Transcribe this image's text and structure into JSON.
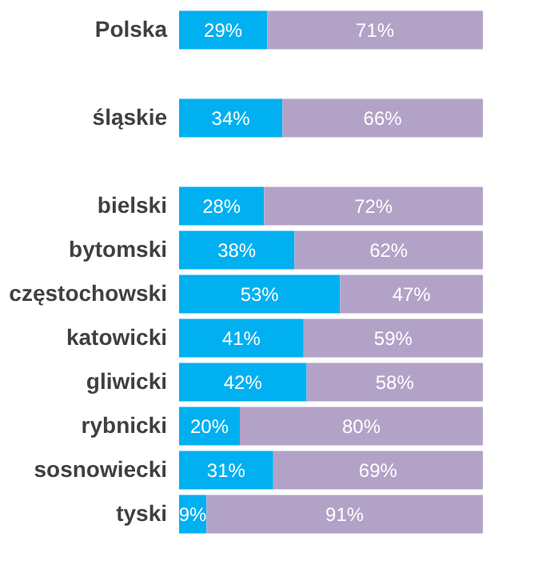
{
  "chart_data": {
    "type": "bar",
    "orientation": "horizontal",
    "stacked": true,
    "xlim": [
      0,
      100
    ],
    "tick_labels": "y",
    "grid": false,
    "categories": [
      "Polska",
      null,
      "śląskie",
      null,
      "bielski",
      "bytomski",
      "częstochowski",
      "katowicki",
      "gliwicki",
      "rybnicki",
      "sosnowiecki",
      "tyski"
    ],
    "series": [
      {
        "color": "#00b0f0",
        "values": [
          29,
          null,
          34,
          null,
          28,
          38,
          53,
          41,
          42,
          20,
          31,
          9
        ],
        "value_labels": [
          "29%",
          null,
          "34%",
          null,
          "28%",
          "38%",
          "53%",
          "41%",
          "42%",
          "20%",
          "31%",
          "9%"
        ]
      },
      {
        "color": "#b3a2c7",
        "values": [
          71,
          null,
          66,
          null,
          72,
          62,
          47,
          59,
          58,
          80,
          69,
          91
        ],
        "value_labels": [
          "71%",
          null,
          "66%",
          null,
          "72%",
          "62%",
          "47%",
          "59%",
          "58%",
          "80%",
          "69%",
          "91%"
        ]
      }
    ]
  }
}
